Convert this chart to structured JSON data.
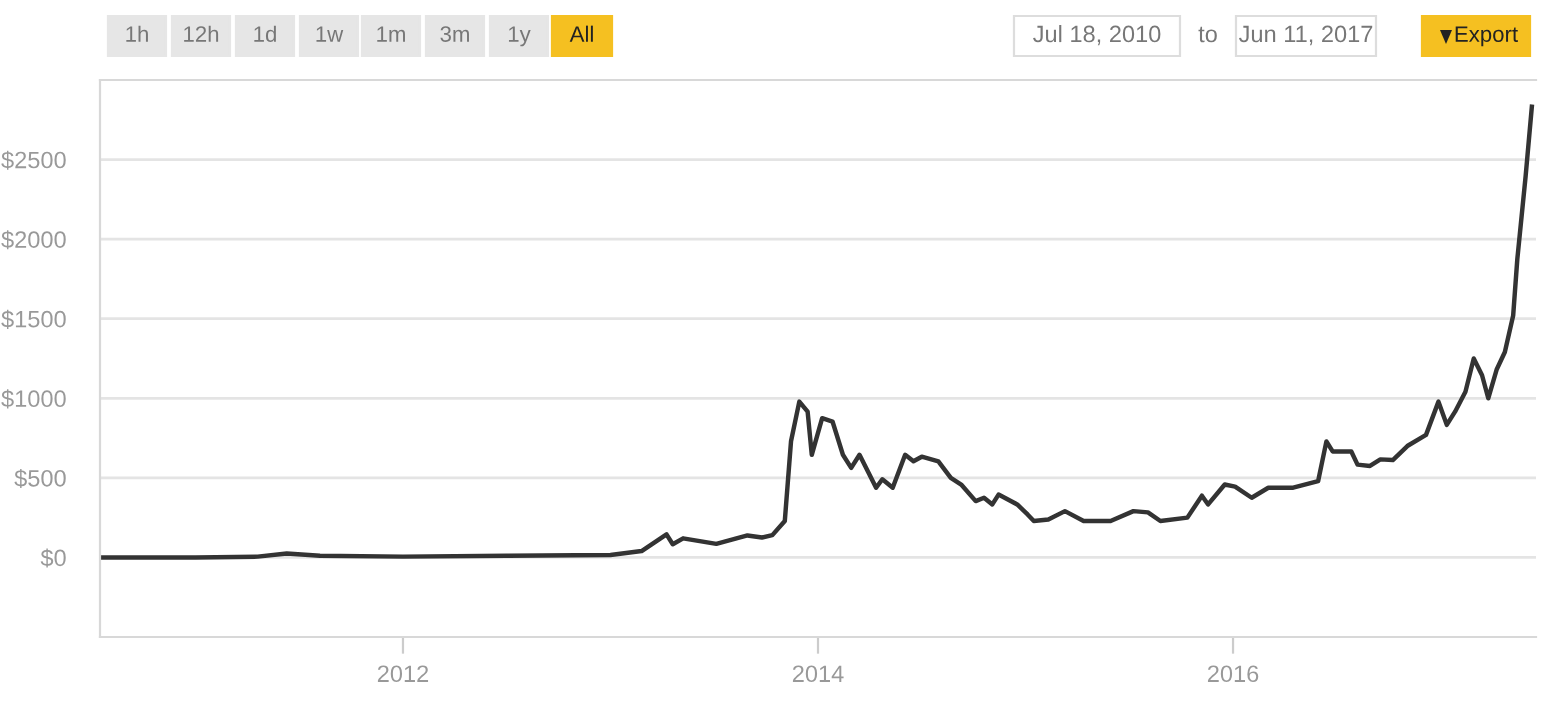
{
  "chart_data": {
    "type": "line",
    "annotations": [
      "1h",
      "12h",
      "1d",
      "1w",
      "1m",
      "3m",
      "1y",
      "All",
      "Jul 18, 2010",
      "to",
      "Jun 11, 2017",
      "Export"
    ],
    "x": [
      2010.54,
      2011.0,
      2011.3,
      2011.44,
      2011.6,
      2012.0,
      2012.5,
      2013.0,
      2013.15,
      2013.27,
      2013.3,
      2013.35,
      2013.51,
      2013.66,
      2013.73,
      2013.78,
      2013.84,
      2013.87,
      2013.91,
      2013.95,
      2013.97,
      2014.02,
      2014.07,
      2014.12,
      2014.16,
      2014.2,
      2014.28,
      2014.31,
      2014.36,
      2014.42,
      2014.46,
      2014.5,
      2014.58,
      2014.64,
      2014.69,
      2014.76,
      2014.8,
      2014.84,
      2014.87,
      2014.96,
      2015.01,
      2015.04,
      2015.11,
      2015.19,
      2015.28,
      2015.41,
      2015.52,
      2015.59,
      2015.65,
      2015.78,
      2015.85,
      2015.88,
      2015.96,
      2016.01,
      2016.09,
      2016.17,
      2016.29,
      2016.41,
      2016.45,
      2016.48,
      2016.57,
      2016.6,
      2016.66,
      2016.71,
      2016.77,
      2016.84,
      2016.93,
      2016.99,
      2017.03,
      2017.07,
      2017.12,
      2017.16,
      2017.2,
      2017.23,
      2017.27,
      2017.31,
      2017.35,
      2017.37,
      2017.41,
      2017.44
    ],
    "series": [
      {
        "color": "#333333",
        "values": [
          0,
          0,
          5,
          25,
          10,
          5,
          10,
          15,
          40,
          145,
          83,
          120,
          85,
          138,
          125,
          140,
          229,
          730,
          979,
          916,
          645,
          875,
          854,
          645,
          563,
          645,
          438,
          491,
          438,
          645,
          604,
          633,
          604,
          500,
          458,
          354,
          375,
          333,
          395,
          333,
          270,
          229,
          238,
          291,
          229,
          229,
          291,
          283,
          229,
          250,
          388,
          333,
          458,
          445,
          375,
          438,
          438,
          479,
          729,
          666,
          666,
          583,
          575,
          616,
          612,
          700,
          770,
          979,
          833,
          916,
          1041,
          1250,
          1145,
          1000,
          1179,
          1291,
          1520,
          1875,
          2395,
          2832
        ]
      }
    ],
    "xlim": [
      2010.54,
      2017.46
    ],
    "ylim": [
      -500,
      3000
    ],
    "xticks": [
      2012,
      2014,
      2016
    ],
    "yticks": [
      {
        "value": 0,
        "label": "$0"
      },
      {
        "value": 500,
        "label": "$500"
      },
      {
        "value": 1000,
        "label": "$1000"
      },
      {
        "value": 1500,
        "label": "$1500"
      },
      {
        "value": 2000,
        "label": "$2000"
      },
      {
        "value": 2500,
        "label": "$2500"
      }
    ],
    "grid": "y",
    "marker": "none",
    "line_style": "solid"
  }
}
